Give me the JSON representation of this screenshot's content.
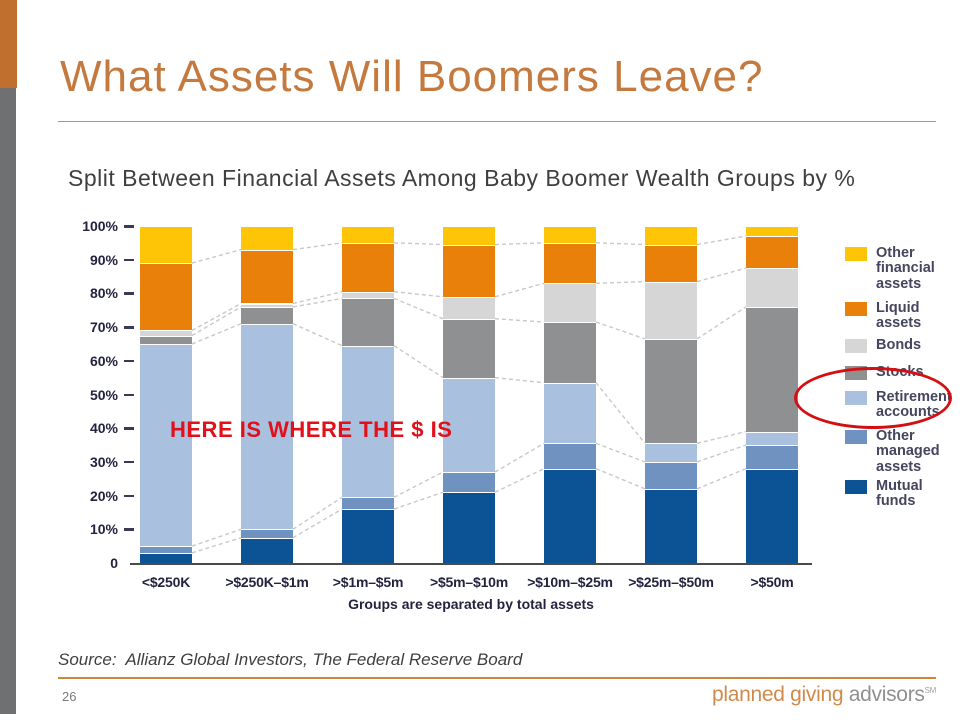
{
  "slide": {
    "title": "What Assets Will Boomers Leave?",
    "annotation": "HERE IS WHERE THE $ IS",
    "source_label": "Source:",
    "source_text": "Allianz Global Investors, The Federal Reserve Board",
    "page_number": "26",
    "logo": {
      "primary": "planned giving",
      "secondary": " advisors",
      "mark": "SM"
    }
  },
  "chart_data": {
    "type": "bar",
    "stacked": true,
    "title": "Split Between Financial Assets Among Baby Boomer Wealth Groups by %",
    "xlabel": "Groups are separated by total assets",
    "ylim": [
      0,
      100
    ],
    "grid": false,
    "y_tick_labels": [
      "100%",
      "90%",
      "80%",
      "70%",
      "60%",
      "50%",
      "40%",
      "30%",
      "20%",
      "10%",
      "0"
    ],
    "categories": [
      "<$250K",
      ">$250K–$1m",
      ">$1m–$5m",
      ">$5m–$10m",
      ">$10m–$25m",
      ">$25m–$50m",
      ">$50m"
    ],
    "series": [
      {
        "name": "Mutual funds",
        "color": "#0B5394",
        "values": [
          3,
          7.5,
          16,
          21,
          28,
          22,
          28
        ]
      },
      {
        "name": "Other managed assets",
        "color": "#7092C0",
        "values": [
          2,
          2.5,
          3.5,
          6,
          7.5,
          8,
          7
        ]
      },
      {
        "name": "Retirement accounts",
        "color": "#A9C0DF",
        "values": [
          60,
          61,
          45,
          28,
          18,
          5.5,
          4
        ],
        "highlighted": true
      },
      {
        "name": "Stocks",
        "color": "#8F9091",
        "values": [
          2.5,
          5,
          14,
          17.5,
          18,
          31,
          37
        ]
      },
      {
        "name": "Bonds",
        "color": "#D6D6D6",
        "values": [
          1.5,
          1,
          2,
          6.5,
          11.5,
          17,
          11.5
        ]
      },
      {
        "name": "Liquid assets",
        "color": "#E8800A",
        "values": [
          20,
          16,
          14.5,
          15.5,
          12,
          11,
          9.5
        ]
      },
      {
        "name": "Other financial assets",
        "color": "#FDC505",
        "values": [
          11,
          7,
          5,
          5.5,
          5,
          5.5,
          3
        ]
      }
    ],
    "legend": {
      "position": "right",
      "order_top_to_bottom": [
        "Other financial assets",
        "Liquid assets",
        "Bonds",
        "Stocks",
        "Retirement accounts",
        "Other managed assets",
        "Mutual funds"
      ],
      "highlighted_entry": "Retirement accounts"
    }
  },
  "colors": {
    "title": "#C4793E",
    "accent_bar_orange": "#C16F2E",
    "accent_bar_gray": "#6F7072",
    "annotation_red": "#E2101A",
    "highlight_ellipse_red": "#D40F12",
    "axis_text": "#23233F",
    "legend_text": "#45455E",
    "footer_rule_orange": "#C8873B",
    "logo_orange": "#D08B4C",
    "logo_gray": "#909090",
    "connector_gray": "#C8C8C8",
    "bar_separator": "#FFFFFF"
  }
}
